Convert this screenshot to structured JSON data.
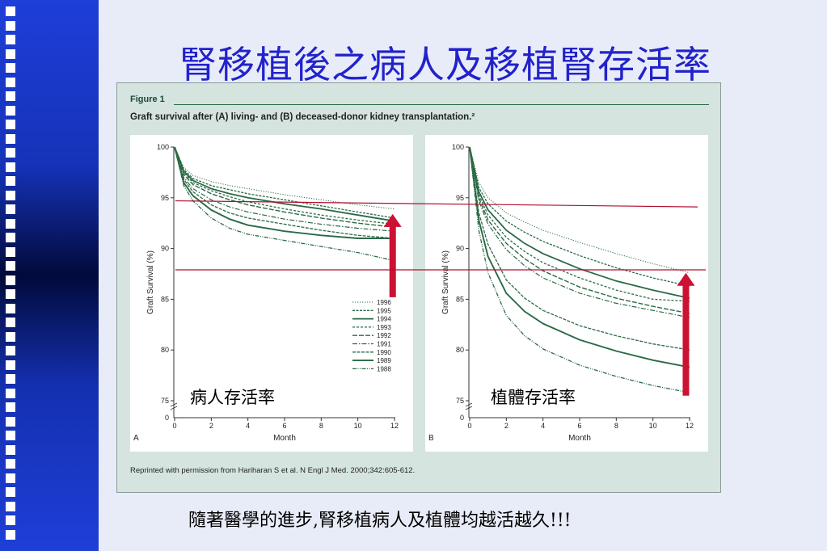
{
  "slide": {
    "title": "腎移植後之病人及移植腎存活率",
    "bottom_note": "隨著醫學的進步,腎移植病人及植體均越活越久!!!"
  },
  "figure": {
    "label": "Figure 1",
    "caption": "Graft survival after (A) living- and (B) deceased-donor kidney transplantation.²",
    "reprint": "Reprinted with permission from Hariharan S et al. N Engl J Med. 2000;342:605-612."
  },
  "colors": {
    "title": "#2222cc",
    "series": "#2a6a45",
    "annotation": "#cc1133",
    "reference_line": "#b01030"
  },
  "chart_data": [
    {
      "type": "line",
      "panel_letter": "A",
      "xlabel": "Month",
      "ylabel": "Graft Survival (%)",
      "xlim": [
        0,
        12
      ],
      "ylim": [
        75,
        100
      ],
      "xticks": [
        0,
        2,
        4,
        6,
        8,
        10,
        12
      ],
      "yticks": [
        75,
        80,
        85,
        90,
        95,
        100
      ],
      "annotation": "病人存活率",
      "reference_lines_y": [
        94.7,
        87.9
      ],
      "arrow": {
        "x": 11.9,
        "from_y": 85.2,
        "to_y": 93.4
      },
      "legend_position": "lower-right",
      "x": [
        0,
        0.5,
        1,
        2,
        3,
        4,
        6,
        8,
        10,
        12
      ],
      "series": [
        {
          "name": "1996",
          "values": [
            100,
            98.0,
            97.2,
            96.6,
            96.2,
            95.9,
            95.3,
            94.8,
            94.3,
            93.9
          ]
        },
        {
          "name": "1995",
          "values": [
            100,
            97.8,
            96.9,
            96.2,
            95.8,
            95.4,
            94.8,
            94.2,
            93.6,
            93.0
          ]
        },
        {
          "name": "1994",
          "values": [
            100,
            97.6,
            96.7,
            95.9,
            95.4,
            95.0,
            94.4,
            93.9,
            93.3,
            92.7
          ]
        },
        {
          "name": "1993",
          "values": [
            100,
            97.5,
            96.5,
            95.7,
            95.1,
            94.6,
            93.9,
            93.3,
            92.8,
            92.4
          ]
        },
        {
          "name": "1992",
          "values": [
            100,
            97.3,
            96.3,
            95.4,
            94.8,
            94.3,
            93.6,
            93.0,
            92.5,
            92.1
          ]
        },
        {
          "name": "1991",
          "values": [
            100,
            97.0,
            95.9,
            94.8,
            94.1,
            93.6,
            92.9,
            92.4,
            92.0,
            91.7
          ]
        },
        {
          "name": "1990",
          "values": [
            100,
            96.8,
            95.6,
            94.3,
            93.5,
            93.0,
            92.4,
            91.8,
            91.3,
            91.0
          ]
        },
        {
          "name": "1989",
          "values": [
            100,
            96.5,
            95.2,
            93.8,
            92.9,
            92.3,
            91.7,
            91.3,
            91.0,
            91.0
          ]
        },
        {
          "name": "1988",
          "values": [
            100,
            96.2,
            94.7,
            93.0,
            92.0,
            91.4,
            90.8,
            90.2,
            89.6,
            88.8
          ]
        }
      ]
    },
    {
      "type": "line",
      "panel_letter": "B",
      "xlabel": "Month",
      "ylabel": "Graft Survival (%)",
      "xlim": [
        0,
        12
      ],
      "ylim": [
        75,
        100
      ],
      "xticks": [
        0,
        2,
        4,
        6,
        8,
        10,
        12
      ],
      "yticks": [
        75,
        80,
        85,
        90,
        95,
        100
      ],
      "annotation": "植體存活率",
      "reference_lines_y": [
        94.1,
        87.9
      ],
      "arrow": {
        "x": 11.8,
        "from_y": 75.5,
        "to_y": 87.6
      },
      "x": [
        0,
        0.5,
        1,
        2,
        3,
        4,
        6,
        8,
        10,
        12
      ],
      "series": [
        {
          "name": "1996",
          "values": [
            100,
            96.5,
            95.0,
            93.5,
            92.6,
            91.8,
            90.6,
            89.5,
            88.5,
            87.6
          ]
        },
        {
          "name": "1995",
          "values": [
            100,
            96.0,
            94.4,
            92.7,
            91.6,
            90.7,
            89.3,
            88.1,
            87.1,
            86.3
          ]
        },
        {
          "name": "1994",
          "values": [
            100,
            95.6,
            93.8,
            91.8,
            90.5,
            89.5,
            88.0,
            86.8,
            85.9,
            85.1
          ]
        },
        {
          "name": "1993",
          "values": [
            100,
            95.3,
            93.3,
            91.1,
            89.7,
            88.6,
            87.1,
            85.9,
            85.0,
            84.8
          ]
        },
        {
          "name": "1992",
          "values": [
            100,
            95.0,
            92.8,
            90.5,
            89.0,
            87.8,
            86.2,
            85.1,
            84.3,
            83.6
          ]
        },
        {
          "name": "1991",
          "values": [
            100,
            94.7,
            92.4,
            89.9,
            88.3,
            87.1,
            85.6,
            84.6,
            83.9,
            83.2
          ]
        },
        {
          "name": "1990",
          "values": [
            100,
            93.5,
            90.4,
            86.9,
            85.1,
            83.9,
            82.4,
            81.4,
            80.6,
            80.0
          ]
        },
        {
          "name": "1989",
          "values": [
            100,
            92.8,
            89.2,
            85.6,
            83.8,
            82.6,
            81.0,
            79.9,
            79.0,
            78.3
          ]
        },
        {
          "name": "1988",
          "values": [
            100,
            91.8,
            87.6,
            83.4,
            81.4,
            80.1,
            78.5,
            77.4,
            76.5,
            75.8
          ]
        }
      ]
    }
  ]
}
